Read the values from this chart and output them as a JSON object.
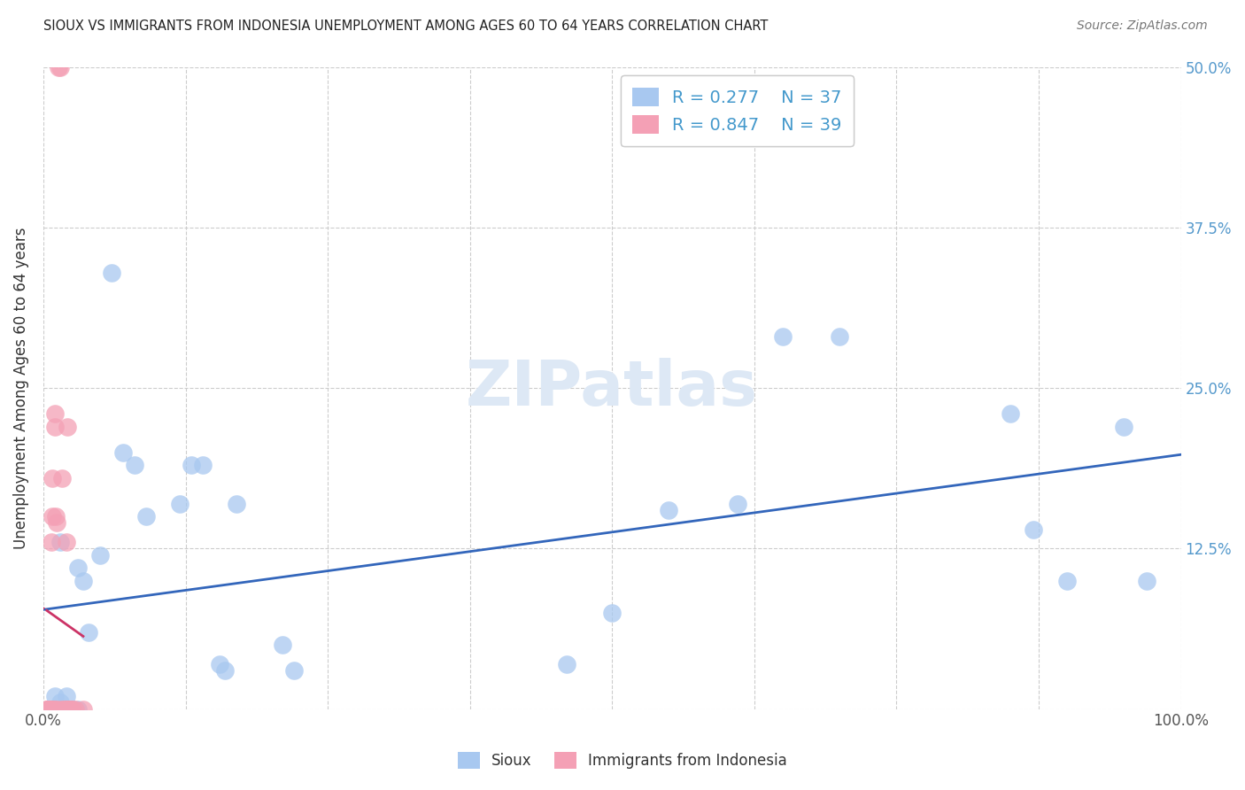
{
  "title": "SIOUX VS IMMIGRANTS FROM INDONESIA UNEMPLOYMENT AMONG AGES 60 TO 64 YEARS CORRELATION CHART",
  "source": "Source: ZipAtlas.com",
  "ylabel": "Unemployment Among Ages 60 to 64 years",
  "xlim": [
    0.0,
    1.0
  ],
  "ylim": [
    0.0,
    0.5
  ],
  "xticks": [
    0.0,
    0.125,
    0.25,
    0.375,
    0.5,
    0.625,
    0.75,
    0.875,
    1.0
  ],
  "xticklabels": [
    "0.0%",
    "",
    "",
    "",
    "",
    "",
    "",
    "",
    "100.0%"
  ],
  "yticks": [
    0.0,
    0.125,
    0.25,
    0.375,
    0.5
  ],
  "yticklabels_right": [
    "",
    "12.5%",
    "25.0%",
    "37.5%",
    "50.0%"
  ],
  "sioux_color": "#a8c8f0",
  "indonesia_color": "#f4a0b5",
  "trendline_sioux_color": "#3366bb",
  "trendline_indonesia_color": "#cc3366",
  "sioux_R": 0.277,
  "sioux_N": 37,
  "indonesia_R": 0.847,
  "indonesia_N": 39,
  "legend_R_color": "#4499cc",
  "sioux_x": [
    0.005,
    0.01,
    0.015,
    0.02,
    0.02,
    0.025,
    0.03,
    0.03,
    0.035,
    0.04,
    0.05,
    0.06,
    0.07,
    0.08,
    0.09,
    0.12,
    0.13,
    0.14,
    0.155,
    0.16,
    0.17,
    0.21,
    0.22,
    0.46,
    0.5,
    0.55,
    0.61,
    0.65,
    0.7,
    0.85,
    0.87,
    0.9,
    0.95,
    0.97,
    0.01,
    0.015,
    0.025
  ],
  "sioux_y": [
    0.0,
    0.0,
    0.005,
    0.0,
    0.01,
    0.0,
    0.0,
    0.11,
    0.1,
    0.06,
    0.12,
    0.34,
    0.2,
    0.19,
    0.15,
    0.16,
    0.19,
    0.19,
    0.035,
    0.03,
    0.16,
    0.05,
    0.03,
    0.035,
    0.075,
    0.155,
    0.16,
    0.29,
    0.29,
    0.23,
    0.14,
    0.1,
    0.22,
    0.1,
    0.01,
    0.13,
    0.0
  ],
  "indonesia_x": [
    0.003,
    0.003,
    0.003,
    0.004,
    0.005,
    0.005,
    0.005,
    0.006,
    0.006,
    0.007,
    0.007,
    0.008,
    0.008,
    0.008,
    0.009,
    0.01,
    0.01,
    0.01,
    0.011,
    0.012,
    0.012,
    0.013,
    0.015,
    0.015,
    0.016,
    0.017,
    0.018,
    0.02,
    0.02,
    0.02,
    0.02,
    0.021,
    0.022,
    0.022,
    0.024,
    0.025,
    0.026,
    0.028,
    0.035
  ],
  "indonesia_y": [
    0.0,
    0.0,
    0.0,
    0.0,
    0.0,
    0.0,
    0.0,
    0.0,
    0.0,
    0.0,
    0.13,
    0.0,
    0.15,
    0.18,
    0.0,
    0.0,
    0.22,
    0.23,
    0.15,
    0.0,
    0.145,
    0.5,
    0.5,
    0.0,
    0.18,
    0.0,
    0.0,
    0.0,
    0.0,
    0.0,
    0.13,
    0.22,
    0.0,
    0.0,
    0.0,
    0.0,
    0.0,
    0.0,
    0.0
  ],
  "watermark": "ZIPatlas",
  "watermark_color": "#dde8f5"
}
